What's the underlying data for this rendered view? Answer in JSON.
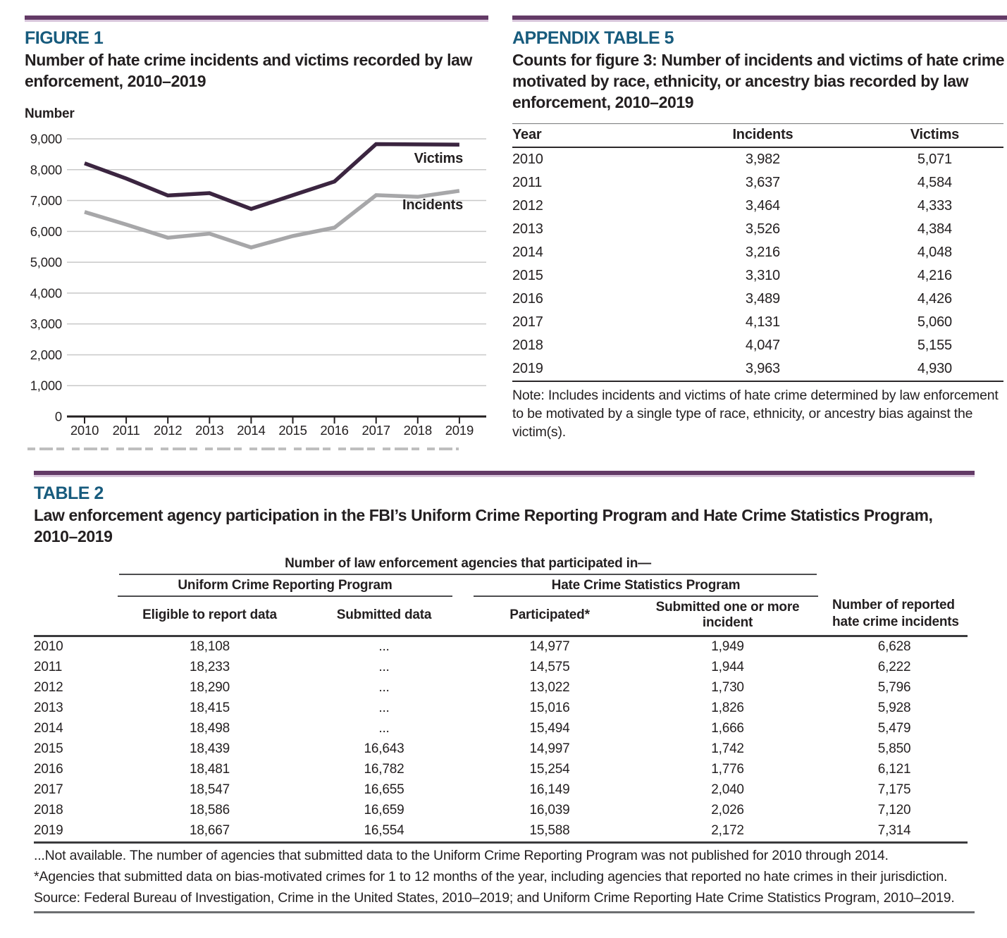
{
  "colors": {
    "accent_bar": "#633a66",
    "accent_bar_light": "#d9c6dc",
    "heading_blue": "#175b7d",
    "victims_line": "#3b2540",
    "incidents_line": "#a7a7a9",
    "gridline": "#c8c8c8",
    "text": "#231f20"
  },
  "figure1": {
    "label": "FIGURE 1",
    "title": "Number of hate crime incidents and victims recorded by law enforcement, 2010–2019",
    "y_axis_unit": "Number"
  },
  "chart_data": {
    "type": "line",
    "title": "Number of hate crime incidents and victims recorded by law enforcement, 2010–2019",
    "xlabel": "",
    "ylabel": "Number",
    "x": [
      "2010",
      "2011",
      "2012",
      "2013",
      "2014",
      "2015",
      "2016",
      "2017",
      "2018",
      "2019"
    ],
    "ylim": [
      0,
      9000
    ],
    "ytick_step": 1000,
    "grid": true,
    "legend_position": "inline-right-of-lines",
    "series": [
      {
        "name": "Victims",
        "color": "#3b2540",
        "values": [
          8208,
          7713,
          7164,
          7242,
          6727,
          7173,
          7615,
          8828,
          8819,
          8812
        ]
      },
      {
        "name": "Incidents",
        "color": "#a7a7a9",
        "values": [
          6628,
          6222,
          5796,
          5928,
          5479,
          5850,
          6121,
          7175,
          7120,
          7314
        ]
      }
    ]
  },
  "appendix_table5": {
    "label": "APPENDIX TABLE 5",
    "title": "Counts for figure 3: Number of incidents and victims of hate crime motivated by race, ethnicity, or ancestry bias recorded by law enforcement, 2010–2019",
    "columns": [
      "Year",
      "Incidents",
      "Victims"
    ],
    "rows": [
      [
        "2010",
        "3,982",
        "5,071"
      ],
      [
        "2011",
        "3,637",
        "4,584"
      ],
      [
        "2012",
        "3,464",
        "4,333"
      ],
      [
        "2013",
        "3,526",
        "4,384"
      ],
      [
        "2014",
        "3,216",
        "4,048"
      ],
      [
        "2015",
        "3,310",
        "4,216"
      ],
      [
        "2016",
        "3,489",
        "4,426"
      ],
      [
        "2017",
        "4,131",
        "5,060"
      ],
      [
        "2018",
        "4,047",
        "5,155"
      ],
      [
        "2019",
        "3,963",
        "4,930"
      ]
    ],
    "note": "Note: Includes incidents and victims of hate crime determined by law enforcement to be motivated by a single type of race, ethnicity, or ancestry bias against the victim(s)."
  },
  "table2": {
    "label": "TABLE 2",
    "title": "Law enforcement agency participation in the FBI’s Uniform Crime Reporting Program and Hate Crime Statistics Program, 2010–2019",
    "group_header": "Number of law enforcement agencies that participated in—",
    "subgroup_headers": [
      "Uniform Crime Reporting Program",
      "Hate Crime Statistics Program"
    ],
    "column_headers": [
      "Eligible to report data",
      "Submitted data",
      "Participated*",
      "Submitted one or more incident"
    ],
    "last_column_header": "Number of reported hate crime incidents",
    "rows": [
      [
        "2010",
        "18,108",
        "...",
        "14,977",
        "1,949",
        "6,628"
      ],
      [
        "2011",
        "18,233",
        "...",
        "14,575",
        "1,944",
        "6,222"
      ],
      [
        "2012",
        "18,290",
        "...",
        "13,022",
        "1,730",
        "5,796"
      ],
      [
        "2013",
        "18,415",
        "...",
        "15,016",
        "1,826",
        "5,928"
      ],
      [
        "2014",
        "18,498",
        "...",
        "15,494",
        "1,666",
        "5,479"
      ],
      [
        "2015",
        "18,439",
        "16,643",
        "14,997",
        "1,742",
        "5,850"
      ],
      [
        "2016",
        "18,481",
        "16,782",
        "15,254",
        "1,776",
        "6,121"
      ],
      [
        "2017",
        "18,547",
        "16,655",
        "16,149",
        "2,040",
        "7,175"
      ],
      [
        "2018",
        "18,586",
        "16,659",
        "16,039",
        "2,026",
        "7,120"
      ],
      [
        "2019",
        "18,667",
        "16,554",
        "15,588",
        "2,172",
        "7,314"
      ]
    ],
    "footnotes": [
      "...Not available. The number of agencies that submitted data to the Uniform Crime Reporting Program was not published for 2010 through 2014.",
      "*Agencies that submitted data on bias-motivated crimes for 1 to 12 months of the year, including agencies that reported no hate crimes in their jurisdiction.",
      "Source: Federal Bureau of Investigation, Crime in the United States, 2010–2019; and Uniform Crime Reporting Hate Crime Statistics Program, 2010–2019."
    ]
  }
}
